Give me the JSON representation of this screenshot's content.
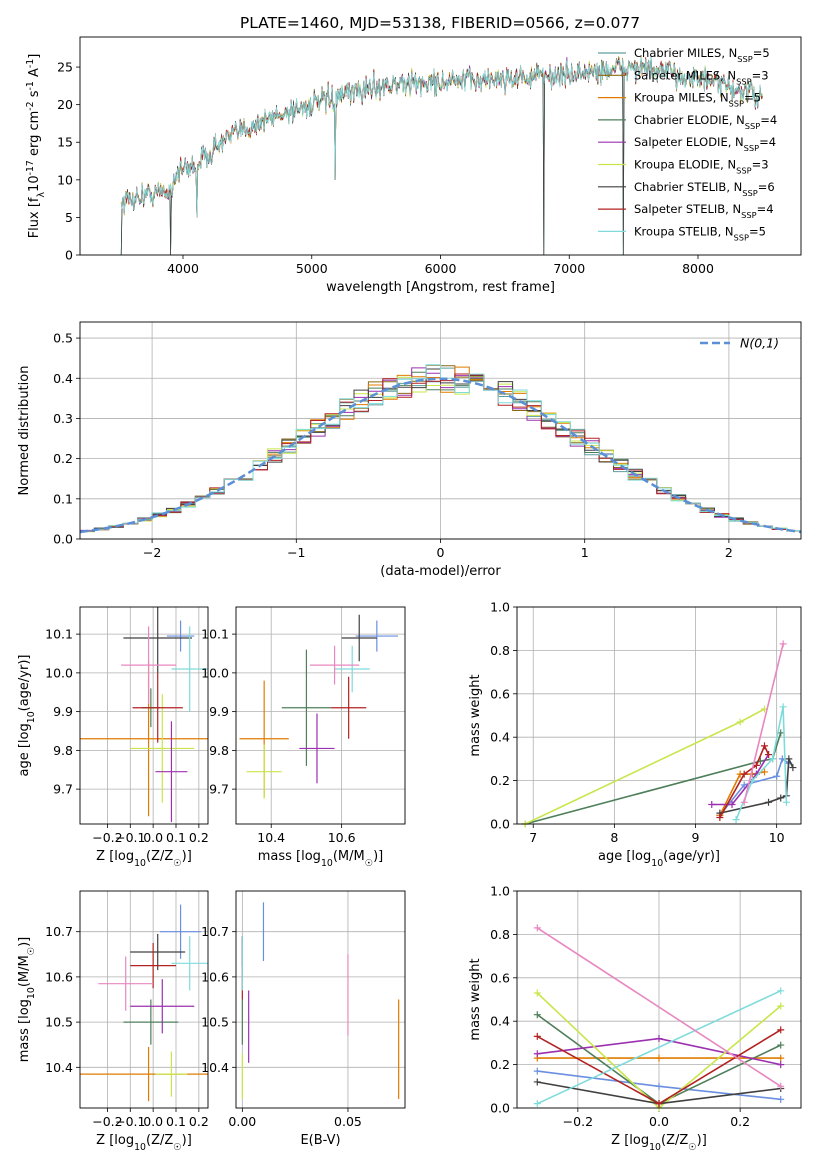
{
  "figure": {
    "title": "PLATE=1460, MJD=53138, FIBERID=0566, z=0.077"
  },
  "models": [
    {
      "name": "Chabrier MILES, N$_{SSP}$=5",
      "color": "#5f9ea0"
    },
    {
      "name": "Salpeter MILES, N$_{SSP}$=3",
      "color": "#8b6914"
    },
    {
      "name": "Kroupa MILES, N$_{SSP}$=5",
      "color": "#e07b00"
    },
    {
      "name": "Chabrier ELODIE, N$_{SSP}$=4",
      "color": "#4f7f5a"
    },
    {
      "name": "Salpeter ELODIE, N$_{SSP}$=4",
      "color": "#9b30b0"
    },
    {
      "name": "Kroupa ELODIE, N$_{SSP}$=3",
      "color": "#c8e64c"
    },
    {
      "name": "Chabrier STELIB, N$_{SSP}$=6",
      "color": "#404040"
    },
    {
      "name": "Salpeter STELIB, N$_{SSP}$=4",
      "color": "#b22222"
    },
    {
      "name": "Kroupa STELIB, N$_{SSP}$=5",
      "color": "#7fdbdb"
    }
  ],
  "param_colors": [
    "#6a8fe0",
    "#e07b00",
    "#4f7f5a",
    "#9b30b0",
    "#c8e64c",
    "#404040",
    "#b22222",
    "#7fdbdb",
    "#e887c0"
  ],
  "chart_data": [
    {
      "type": "line",
      "id": "spectrum",
      "xlabel": "wavelength [Angstrom, rest frame]",
      "ylabel": "Flux [f$_\\lambda$10$^{-17}$ erg cm$^{-2}$ s$^{-1}$ A$^{-1}$]",
      "xlim": [
        3200,
        8800
      ],
      "ylim": [
        0,
        29
      ],
      "xticks": [
        4000,
        5000,
        6000,
        7000,
        8000
      ],
      "yticks": [
        0,
        5,
        10,
        15,
        20,
        25
      ],
      "grid": false,
      "legend": "upper-right",
      "continuum_points": [
        [
          3520,
          7
        ],
        [
          3700,
          8
        ],
        [
          3900,
          8.5
        ],
        [
          3950,
          11
        ],
        [
          4100,
          12
        ],
        [
          4300,
          15
        ],
        [
          4500,
          17
        ],
        [
          4800,
          19
        ],
        [
          5000,
          20
        ],
        [
          5200,
          21
        ],
        [
          5500,
          22.5
        ],
        [
          6000,
          23
        ],
        [
          6500,
          23.5
        ],
        [
          7000,
          24
        ],
        [
          7500,
          25
        ],
        [
          8000,
          23.5
        ],
        [
          8500,
          21
        ]
      ],
      "dips": [
        [
          3520,
          0
        ],
        [
          3905,
          0
        ],
        [
          4110,
          5
        ],
        [
          5180,
          10
        ],
        [
          6800,
          0
        ],
        [
          7420,
          0
        ]
      ]
    },
    {
      "type": "bar",
      "id": "residuals",
      "xlabel": "(data-model)/error",
      "ylabel": "Normed distribution",
      "xlim": [
        -2.5,
        2.5
      ],
      "ylim": [
        0,
        0.54
      ],
      "xticks": [
        -2,
        -1,
        0,
        1,
        2
      ],
      "yticks": [
        0.0,
        0.1,
        0.2,
        0.3,
        0.4,
        0.5
      ],
      "grid": true,
      "legend_label": "$\\mathcal{N}(0,1)$",
      "legend": "upper-right",
      "bin_width": 0.1
    },
    {
      "type": "scatter",
      "id": "age-vs-Z",
      "xlabel": "Z [log$_{10}$(Z/Z$_\\odot$)]",
      "ylabel": "age  [log$_{10}$(age/yr)]",
      "xlim": [
        -0.32,
        0.24
      ],
      "ylim": [
        9.61,
        10.17
      ],
      "xticks": [
        -0.2,
        -0.1,
        0.0,
        0.1,
        0.2
      ],
      "yticks": [
        9.7,
        9.8,
        9.9,
        10.0,
        10.1
      ],
      "points": [
        {
          "x": 0.12,
          "y": 10.095,
          "xerr": 0.06,
          "yerr": 0.04,
          "c": 0
        },
        {
          "x": -0.02,
          "y": 9.83,
          "xerr": 0.3,
          "yerr": 0.2,
          "c": 1
        },
        {
          "x": -0.01,
          "y": 9.91,
          "xerr": 0.04,
          "yerr": 0.05,
          "c": 2
        },
        {
          "x": 0.04,
          "y": 9.805,
          "xerr": 0.14,
          "yerr": 0.14,
          "c": 4
        },
        {
          "x": 0.08,
          "y": 9.745,
          "xerr": 0.07,
          "yerr": 0.13,
          "c": 3
        },
        {
          "x": 0.02,
          "y": 10.09,
          "xerr": 0.15,
          "yerr": 0.09,
          "c": 5
        },
        {
          "x": 0.02,
          "y": 9.91,
          "xerr": 0.11,
          "yerr": 0.09,
          "c": 6
        },
        {
          "x": 0.16,
          "y": 10.01,
          "xerr": 0.08,
          "yerr": 0.11,
          "c": 7
        },
        {
          "x": -0.02,
          "y": 10.02,
          "xerr": 0.12,
          "yerr": 0.1,
          "c": 8
        }
      ]
    },
    {
      "type": "scatter",
      "id": "age-vs-mass",
      "xlabel": "mass [log$_{10}$(M/M$_\\odot$)]",
      "ylabel": "",
      "xlim": [
        10.3,
        10.78
      ],
      "ylim": [
        9.61,
        10.17
      ],
      "xticks": [
        10.4,
        10.6
      ],
      "yticks": [
        9.7,
        9.8,
        9.9,
        10.0,
        10.1
      ],
      "points": [
        {
          "x": 10.7,
          "y": 10.095,
          "xerr": 0.06,
          "yerr": 0.04,
          "c": 0
        },
        {
          "x": 10.38,
          "y": 9.83,
          "xerr": 0.07,
          "yerr": 0.15,
          "c": 1
        },
        {
          "x": 10.5,
          "y": 9.91,
          "xerr": 0.07,
          "yerr": 0.15,
          "c": 2
        },
        {
          "x": 10.53,
          "y": 9.805,
          "xerr": 0.05,
          "yerr": 0.09,
          "c": 3
        },
        {
          "x": 10.38,
          "y": 9.745,
          "xerr": 0.05,
          "yerr": 0.07,
          "c": 4
        },
        {
          "x": 10.65,
          "y": 10.09,
          "xerr": 0.05,
          "yerr": 0.06,
          "c": 5
        },
        {
          "x": 10.62,
          "y": 9.91,
          "xerr": 0.05,
          "yerr": 0.08,
          "c": 6
        },
        {
          "x": 10.63,
          "y": 10.01,
          "xerr": 0.05,
          "yerr": 0.06,
          "c": 7
        },
        {
          "x": 10.58,
          "y": 10.02,
          "xerr": 0.07,
          "yerr": 0.05,
          "c": 8
        }
      ]
    },
    {
      "type": "line",
      "id": "mass-weight-vs-age",
      "xlabel": "age  [log$_{10}$(age/yr)]",
      "ylabel": "mass weight",
      "xlim": [
        6.8,
        10.3
      ],
      "ylim": [
        0,
        1.0
      ],
      "xticks": [
        7,
        8,
        9,
        10
      ],
      "yticks": [
        0.0,
        0.2,
        0.4,
        0.6,
        0.8,
        1.0
      ],
      "grid": true,
      "series": [
        {
          "c": 0,
          "x": [
            9.3,
            9.6,
            10.0,
            10.07,
            10.15
          ],
          "y": [
            0.04,
            0.18,
            0.22,
            0.3,
            0.28
          ]
        },
        {
          "c": 1,
          "x": [
            9.3,
            9.55,
            9.7,
            9.85
          ],
          "y": [
            0.04,
            0.23,
            0.23,
            0.24
          ]
        },
        {
          "c": 2,
          "x": [
            6.9,
            9.8,
            9.95,
            10.05
          ],
          "y": [
            0.0,
            0.29,
            0.3,
            0.42
          ]
        },
        {
          "c": 3,
          "x": [
            9.2,
            9.45,
            9.75,
            9.9
          ],
          "y": [
            0.09,
            0.09,
            0.23,
            0.32
          ]
        },
        {
          "c": 4,
          "x": [
            6.9,
            9.55,
            9.85
          ],
          "y": [
            0.0,
            0.47,
            0.53
          ]
        },
        {
          "c": 5,
          "x": [
            9.3,
            9.9,
            10.05,
            10.12,
            10.15,
            10.2
          ],
          "y": [
            0.05,
            0.1,
            0.12,
            0.13,
            0.3,
            0.26
          ]
        },
        {
          "c": 6,
          "x": [
            9.3,
            9.6,
            9.75,
            9.85,
            9.9
          ],
          "y": [
            0.03,
            0.23,
            0.27,
            0.36,
            0.32
          ]
        },
        {
          "c": 7,
          "x": [
            9.5,
            9.7,
            9.95,
            10.08,
            10.12
          ],
          "y": [
            0.02,
            0.2,
            0.3,
            0.54,
            0.1
          ]
        },
        {
          "c": 8,
          "x": [
            9.6,
            10.08
          ],
          "y": [
            0.1,
            0.83
          ]
        }
      ]
    },
    {
      "type": "scatter",
      "id": "mass-vs-Z",
      "xlabel": "Z [log$_{10}$(Z/Z$_\\odot$)]",
      "ylabel": "mass [log$_{10}$(M/M$_\\odot$)]",
      "xlim": [
        -0.32,
        0.24
      ],
      "ylim": [
        10.31,
        10.79
      ],
      "xticks": [
        -0.2,
        -0.1,
        0.0,
        0.1,
        0.2
      ],
      "yticks": [
        10.4,
        10.5,
        10.6,
        10.7
      ],
      "points": [
        {
          "x": 0.12,
          "y": 10.7,
          "xerr": 0.09,
          "yerr": 0.06,
          "c": 0
        },
        {
          "x": -0.02,
          "y": 10.385,
          "xerr": 0.3,
          "yerr": 0.06,
          "c": 1
        },
        {
          "x": -0.01,
          "y": 10.5,
          "xerr": 0.12,
          "yerr": 0.05,
          "c": 2
        },
        {
          "x": 0.04,
          "y": 10.535,
          "xerr": 0.14,
          "yerr": 0.06,
          "c": 3
        },
        {
          "x": 0.08,
          "y": 10.385,
          "xerr": 0.07,
          "yerr": 0.05,
          "c": 4
        },
        {
          "x": 0.02,
          "y": 10.655,
          "xerr": 0.12,
          "yerr": 0.04,
          "c": 5
        },
        {
          "x": 0.0,
          "y": 10.625,
          "xerr": 0.1,
          "yerr": 0.05,
          "c": 6
        },
        {
          "x": 0.16,
          "y": 10.63,
          "xerr": 0.08,
          "yerr": 0.06,
          "c": 7
        },
        {
          "x": -0.12,
          "y": 10.585,
          "xerr": 0.12,
          "yerr": 0.06,
          "c": 8
        }
      ]
    },
    {
      "type": "scatter",
      "id": "mass-vs-ebv",
      "xlabel": "E(B-V)",
      "ylabel": "",
      "xlim": [
        -0.003,
        0.077
      ],
      "ylim": [
        10.31,
        10.79
      ],
      "xticks": [
        0.0,
        0.05
      ],
      "yticks": [
        10.4,
        10.5,
        10.6,
        10.7
      ],
      "points": [
        {
          "x": 0.01,
          "y": 10.7,
          "xerr": 0,
          "yerr": 0.065,
          "c": 0
        },
        {
          "x": 0.074,
          "y": 10.44,
          "xerr": 0,
          "yerr": 0.11,
          "c": 1
        },
        {
          "x": 0.0,
          "y": 10.5,
          "xerr": 0,
          "yerr": 0.05,
          "c": 2
        },
        {
          "x": 0.003,
          "y": 10.49,
          "xerr": 0,
          "yerr": 0.08,
          "c": 3
        },
        {
          "x": 0.0,
          "y": 10.38,
          "xerr": 0,
          "yerr": 0.05,
          "c": 4
        },
        {
          "x": 0.0,
          "y": 10.655,
          "xerr": 0,
          "yerr": 0.03,
          "c": 5
        },
        {
          "x": 0.0,
          "y": 10.62,
          "xerr": 0,
          "yerr": 0.07,
          "c": 6
        },
        {
          "x": 0.0,
          "y": 10.63,
          "xerr": 0,
          "yerr": 0.06,
          "c": 7
        },
        {
          "x": 0.05,
          "y": 10.56,
          "xerr": 0,
          "yerr": 0.09,
          "c": 8
        }
      ]
    },
    {
      "type": "line",
      "id": "mass-weight-vs-Z",
      "xlabel": "Z [log$_{10}$(Z/Z$_\\odot$)]",
      "ylabel": "mass weight",
      "xlim": [
        -0.35,
        0.35
      ],
      "ylim": [
        0,
        1.0
      ],
      "xticks": [
        -0.2,
        0.0,
        0.2
      ],
      "yticks": [
        0.0,
        0.2,
        0.4,
        0.6,
        0.8,
        1.0
      ],
      "grid": true,
      "series": [
        {
          "c": 0,
          "x": [
            -0.3,
            0.0,
            0.3
          ],
          "y": [
            0.17,
            0.1,
            0.04
          ]
        },
        {
          "c": 1,
          "x": [
            -0.3,
            0.0,
            0.3
          ],
          "y": [
            0.23,
            0.23,
            0.23
          ]
        },
        {
          "c": 2,
          "x": [
            -0.3,
            0.0,
            0.3
          ],
          "y": [
            0.43,
            0.02,
            0.29
          ]
        },
        {
          "c": 3,
          "x": [
            -0.3,
            0.0,
            0.3
          ],
          "y": [
            0.25,
            0.32,
            0.2
          ]
        },
        {
          "c": 4,
          "x": [
            -0.3,
            0.0,
            0.3
          ],
          "y": [
            0.53,
            0.0,
            0.47
          ]
        },
        {
          "c": 5,
          "x": [
            -0.3,
            0.0,
            0.3
          ],
          "y": [
            0.12,
            0.02,
            0.09
          ]
        },
        {
          "c": 6,
          "x": [
            -0.3,
            0.0,
            0.3
          ],
          "y": [
            0.33,
            0.02,
            0.36
          ]
        },
        {
          "c": 7,
          "x": [
            -0.3,
            0.3
          ],
          "y": [
            0.02,
            0.54
          ]
        },
        {
          "c": 8,
          "x": [
            -0.3,
            0.3
          ],
          "y": [
            0.83,
            0.1
          ]
        }
      ]
    }
  ]
}
